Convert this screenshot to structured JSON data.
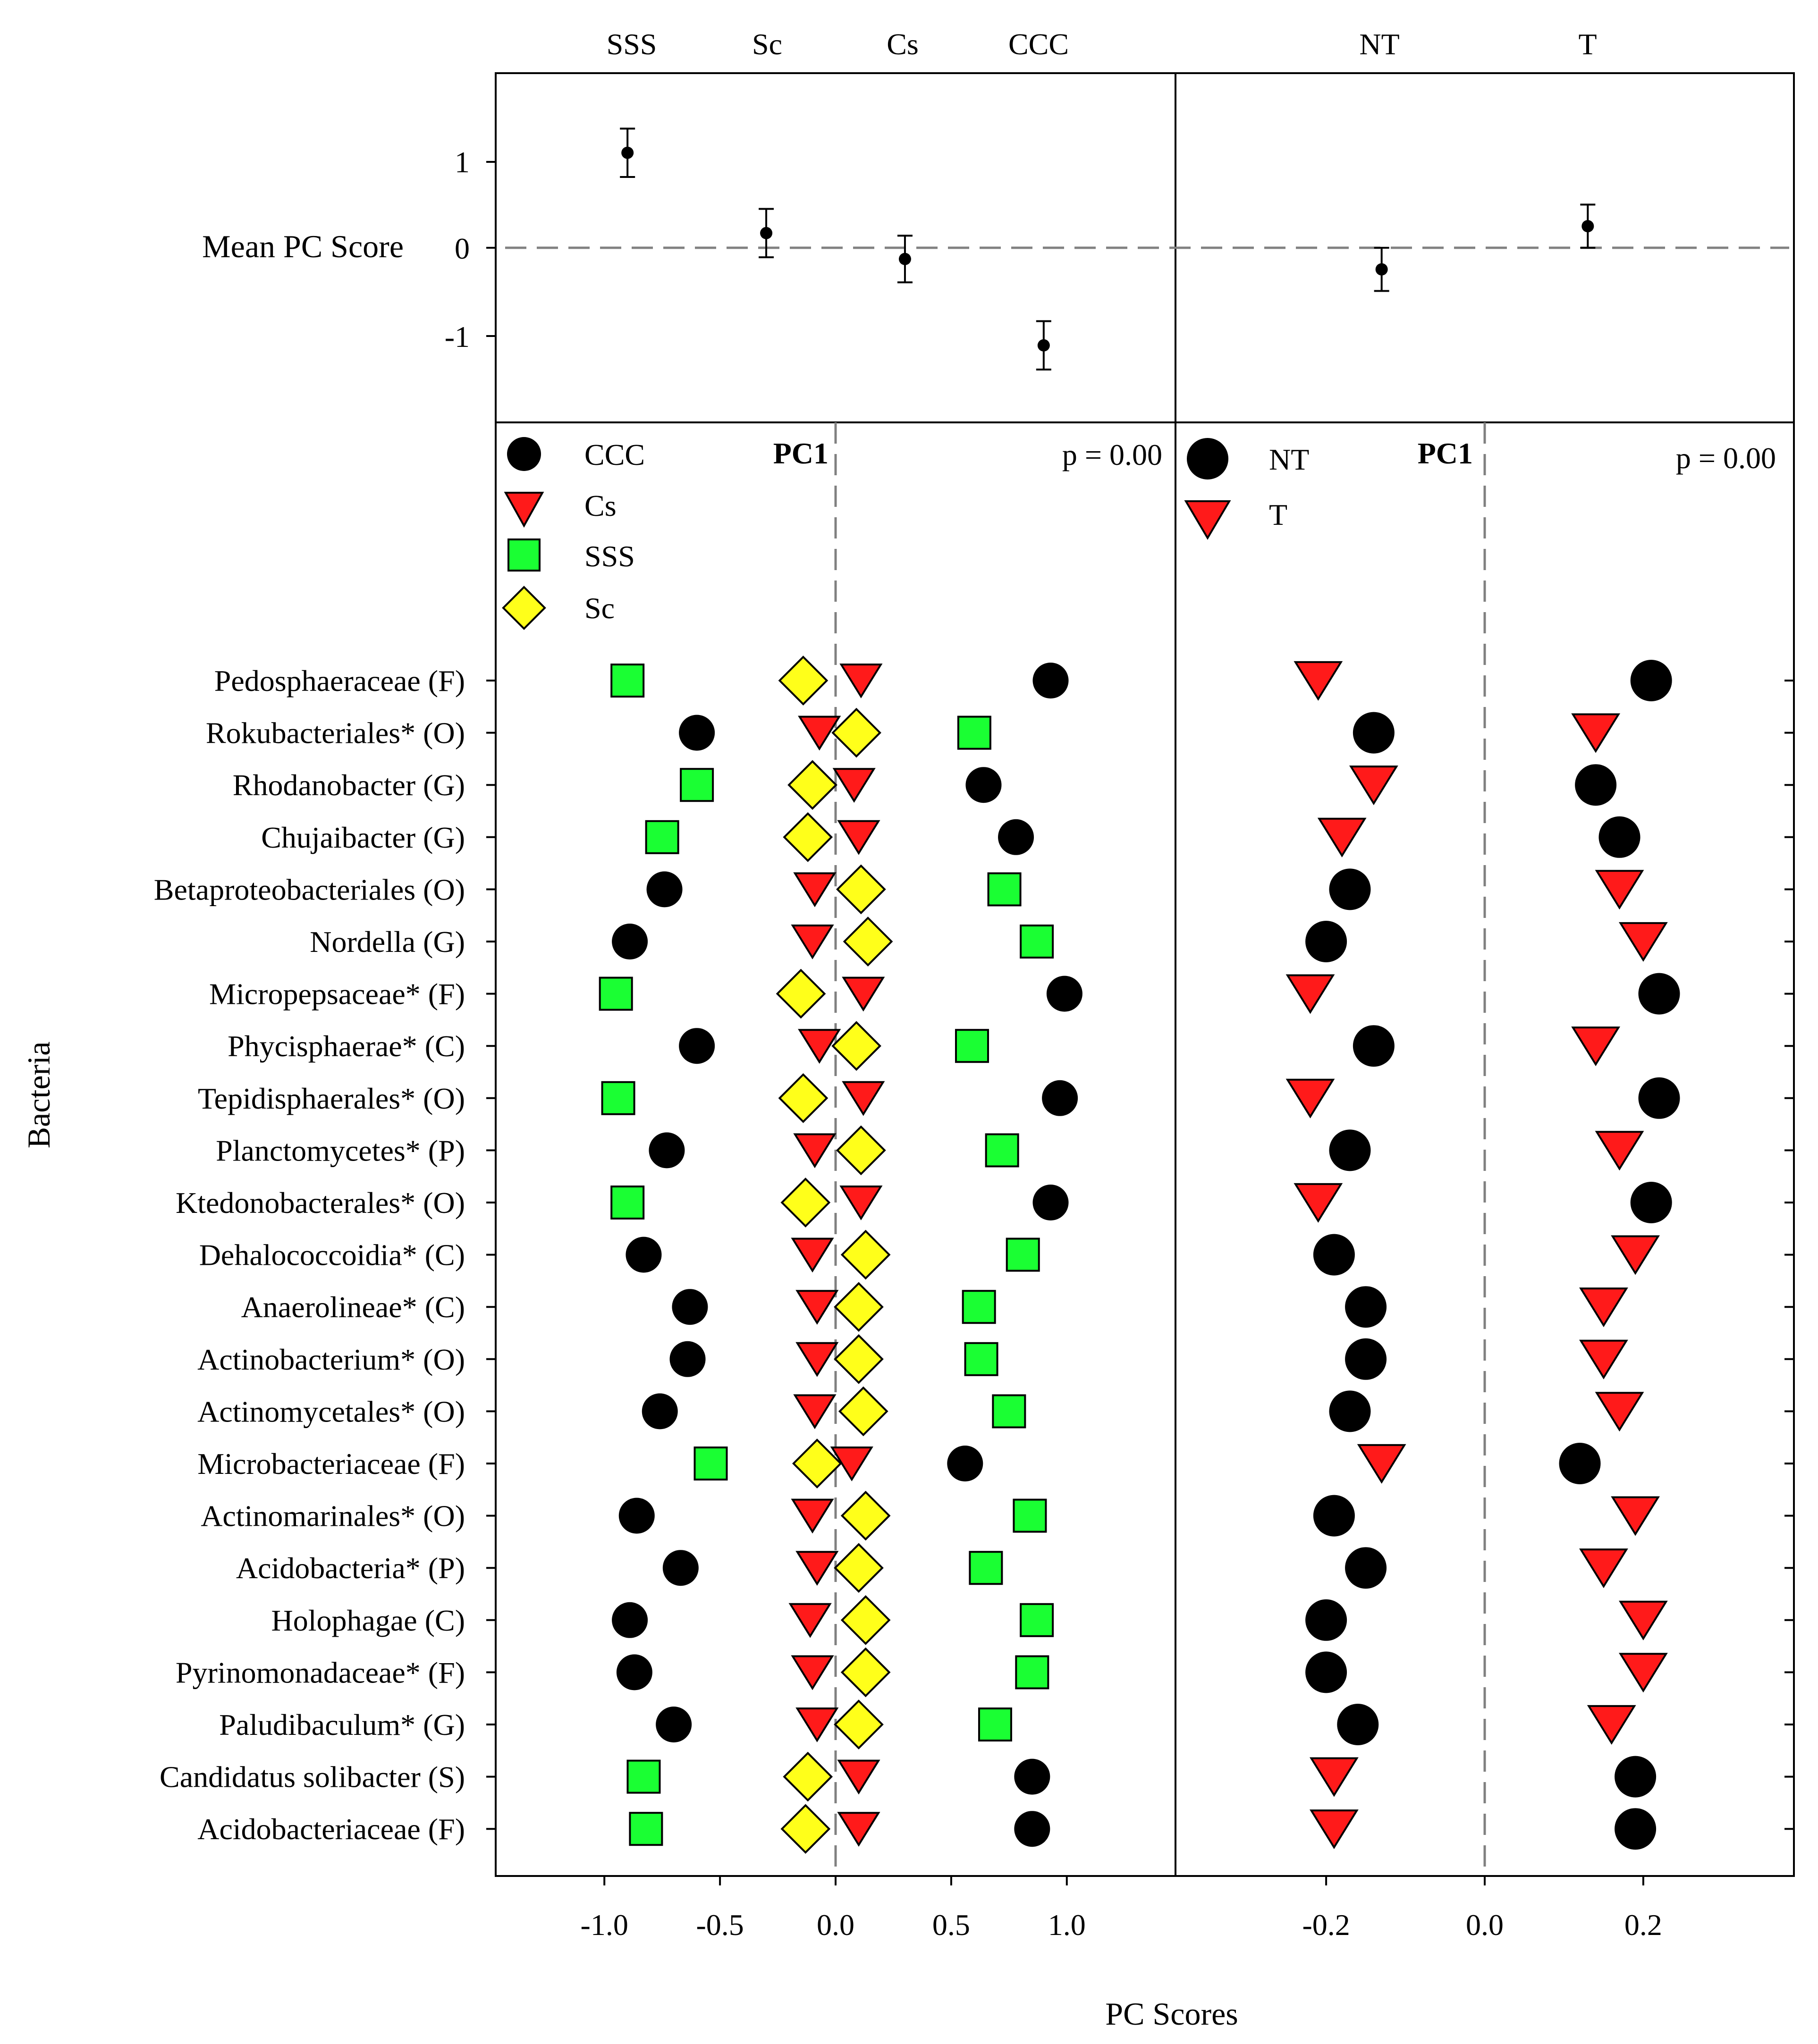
{
  "chart_data": {
    "type": "scatter",
    "title": "",
    "xlabel": "PC Scores",
    "ylabel": "Bacteria",
    "colors": {
      "black": "#000000",
      "red": "#ff1a1a",
      "green": "#1aff33",
      "yellow": "#ffff1a",
      "dash": "#808080"
    },
    "top_panels": [
      {
        "id": "treatment",
        "ylabel": "Mean PC Score",
        "ylim": [
          -2,
          2
        ],
        "yticks": [
          "1",
          "0",
          "-1"
        ],
        "ytick_values": [
          1,
          0,
          -1
        ],
        "groups": [
          {
            "name": "SSS",
            "x": -0.9,
            "mean": 1.1,
            "err": 0.28
          },
          {
            "name": "Sc",
            "x": -0.3,
            "mean": 0.17,
            "err": 0.28
          },
          {
            "name": "Cs",
            "x": 0.3,
            "mean": -0.13,
            "err": 0.27
          },
          {
            "name": "CCC",
            "x": 0.9,
            "mean": -1.13,
            "err": 0.28
          }
        ]
      },
      {
        "id": "tillage",
        "groups": [
          {
            "name": "NT",
            "x": -0.13,
            "mean": -0.25,
            "err": 0.25
          },
          {
            "name": "T",
            "x": 0.13,
            "mean": 0.25,
            "err": 0.25
          }
        ]
      }
    ],
    "left_panel": {
      "pc_label": "PC1",
      "p_text": "p = 0.00",
      "xlim": [
        -1.47,
        1.47
      ],
      "xticks": [
        "-1.0",
        "-0.5",
        "0.0",
        "0.5",
        "1.0"
      ],
      "xtick_values": [
        -1.0,
        -0.5,
        0.0,
        0.5,
        1.0
      ],
      "legend": [
        {
          "label": "CCC",
          "marker": "circle"
        },
        {
          "label": "Cs",
          "marker": "triangle"
        },
        {
          "label": "SSS",
          "marker": "square"
        },
        {
          "label": "Sc",
          "marker": "diamond"
        }
      ]
    },
    "right_panel": {
      "pc_label": "PC1",
      "p_text": "p = 0.00",
      "xlim": [
        -0.39,
        0.39
      ],
      "xticks": [
        "-0.2",
        "0.0",
        "0.2"
      ],
      "xtick_values": [
        -0.2,
        0.0,
        0.2
      ],
      "legend": [
        {
          "label": "NT",
          "marker": "circle"
        },
        {
          "label": "T",
          "marker": "triangle"
        }
      ]
    },
    "categories": [
      "Pedosphaeraceae (F)",
      "Rokubacteriales* (O)",
      "Rhodanobacter (G)",
      "Chujaibacter (G)",
      "Betaproteobacteriales (O)",
      "Nordella (G)",
      "Micropepsaceae* (F)",
      "Phycisphaerae* (C)",
      "Tepidisphaerales* (O)",
      "Planctomycetes* (P)",
      "Ktedonobacterales* (O)",
      "Dehalococcoidia* (C)",
      "Anaerolineae* (C)",
      "Actinobacterium* (O)",
      "Actinomycetales* (O)",
      "Microbacteriaceae (F)",
      "Actinomarinales* (O)",
      "Acidobacteria* (P)",
      "Holophagae (C)",
      "Pyrinomonadaceae* (F)",
      "Paludibaculum* (G)",
      "Candidatus solibacter (S)",
      "Acidobacteriaceae (F)"
    ],
    "series_left": [
      {
        "name": "CCC",
        "marker": "circle",
        "values": [
          0.93,
          -0.6,
          0.64,
          0.78,
          -0.74,
          -0.89,
          0.99,
          -0.6,
          0.97,
          -0.73,
          0.93,
          -0.83,
          -0.63,
          -0.64,
          -0.76,
          0.56,
          -0.86,
          -0.67,
          -0.89,
          -0.87,
          -0.7,
          0.85,
          0.85
        ]
      },
      {
        "name": "Cs",
        "marker": "triangle",
        "values": [
          0.11,
          -0.07,
          0.08,
          0.1,
          -0.09,
          -0.1,
          0.12,
          -0.07,
          0.12,
          -0.09,
          0.11,
          -0.1,
          -0.08,
          -0.08,
          -0.09,
          0.07,
          -0.1,
          -0.08,
          -0.11,
          -0.1,
          -0.08,
          0.1,
          0.1
        ]
      },
      {
        "name": "SSS",
        "marker": "square",
        "values": [
          -0.9,
          0.6,
          -0.6,
          -0.75,
          0.73,
          0.87,
          -0.95,
          0.59,
          -0.94,
          0.72,
          -0.9,
          0.81,
          0.62,
          0.63,
          0.75,
          -0.54,
          0.84,
          0.65,
          0.87,
          0.85,
          0.69,
          -0.83,
          -0.82
        ]
      },
      {
        "name": "Sc",
        "marker": "diamond",
        "values": [
          -0.14,
          0.09,
          -0.1,
          -0.12,
          0.11,
          0.14,
          -0.15,
          0.09,
          -0.14,
          0.11,
          -0.13,
          0.13,
          0.1,
          0.1,
          0.12,
          -0.08,
          0.13,
          0.1,
          0.13,
          0.13,
          0.1,
          -0.12,
          -0.13
        ]
      }
    ],
    "series_right": [
      {
        "name": "NT",
        "marker": "circle",
        "values": [
          0.21,
          -0.14,
          0.14,
          0.17,
          -0.17,
          -0.2,
          0.22,
          -0.14,
          0.22,
          -0.17,
          0.21,
          -0.19,
          -0.15,
          -0.15,
          -0.17,
          0.12,
          -0.19,
          -0.15,
          -0.2,
          -0.2,
          -0.16,
          0.19,
          0.19
        ]
      },
      {
        "name": "T",
        "marker": "triangle",
        "values": [
          -0.21,
          0.14,
          -0.14,
          -0.18,
          0.17,
          0.2,
          -0.22,
          0.14,
          -0.22,
          0.17,
          -0.21,
          0.19,
          0.15,
          0.15,
          0.17,
          -0.13,
          0.19,
          0.15,
          0.2,
          0.2,
          0.16,
          -0.19,
          -0.19
        ]
      }
    ]
  }
}
